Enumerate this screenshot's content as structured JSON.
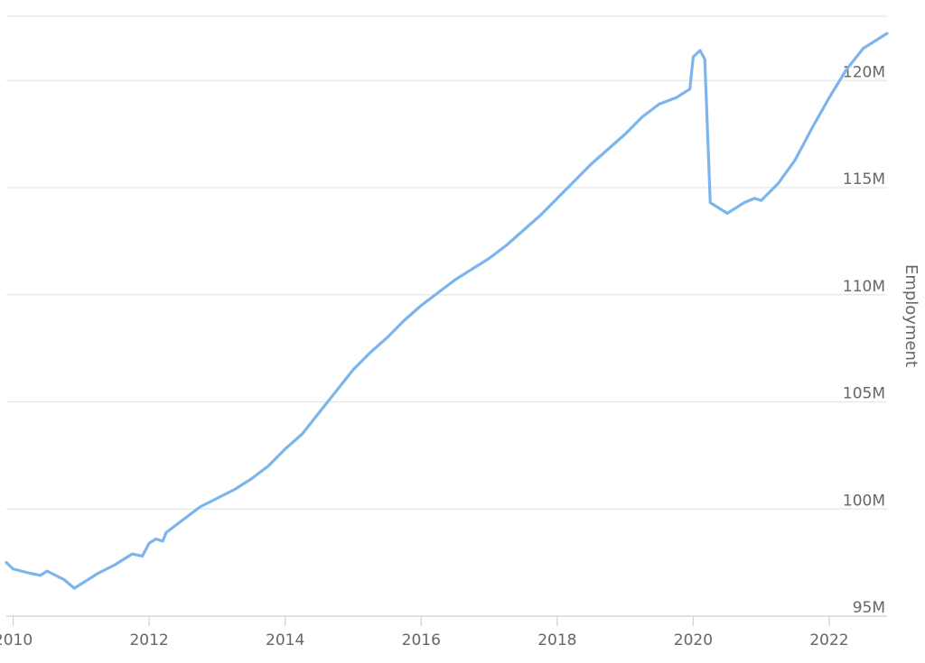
{
  "chart_data": {
    "type": "line",
    "ylabel": "Employment",
    "xlim": [
      2009.9,
      2022.85
    ],
    "ylim": [
      95,
      123
    ],
    "x_ticks": [
      "2010",
      "2012",
      "2014",
      "2016",
      "2018",
      "2020",
      "2022"
    ],
    "y_ticks": [
      "95M",
      "100M",
      "105M",
      "110M",
      "115M",
      "120M"
    ],
    "grid": true,
    "colors": {
      "series": "#7cb5ec",
      "grid": "#e6e6e6",
      "axis": "#c8d2dc",
      "text": "#666666"
    },
    "series": [
      {
        "x": [
          2009.9,
          2010.0,
          2010.25,
          2010.4,
          2010.5,
          2010.75,
          2010.9,
          2011.0,
          2011.25,
          2011.5,
          2011.75,
          2011.9,
          2012.0,
          2012.1,
          2012.2,
          2012.25,
          2012.5,
          2012.75,
          2013.0,
          2013.25,
          2013.5,
          2013.75,
          2014.0,
          2014.25,
          2014.5,
          2014.75,
          2015.0,
          2015.25,
          2015.5,
          2015.75,
          2016.0,
          2016.25,
          2016.5,
          2016.75,
          2017.0,
          2017.25,
          2017.5,
          2017.75,
          2018.0,
          2018.25,
          2018.5,
          2018.75,
          2019.0,
          2019.25,
          2019.5,
          2019.75,
          2019.95,
          2020.0,
          2020.1,
          2020.17,
          2020.25,
          2020.4,
          2020.5,
          2020.75,
          2020.9,
          2021.0,
          2021.25,
          2021.5,
          2021.75,
          2022.0,
          2022.25,
          2022.5,
          2022.75,
          2022.85
        ],
        "y": [
          97.5,
          97.2,
          97.0,
          96.9,
          97.1,
          96.7,
          96.3,
          96.5,
          97.0,
          97.4,
          97.9,
          97.8,
          98.4,
          98.6,
          98.5,
          98.9,
          99.5,
          100.1,
          100.5,
          100.9,
          101.4,
          102.0,
          102.8,
          103.5,
          104.5,
          105.5,
          106.5,
          107.3,
          108.0,
          108.8,
          109.5,
          110.1,
          110.7,
          111.2,
          111.7,
          112.3,
          113.0,
          113.7,
          114.5,
          115.3,
          116.1,
          116.8,
          117.5,
          118.3,
          118.9,
          119.2,
          119.6,
          121.1,
          121.4,
          121.0,
          114.3,
          114.0,
          113.8,
          114.3,
          114.5,
          114.4,
          115.2,
          116.3,
          117.8,
          119.2,
          120.5,
          121.5,
          122.0,
          122.2
        ]
      }
    ]
  }
}
